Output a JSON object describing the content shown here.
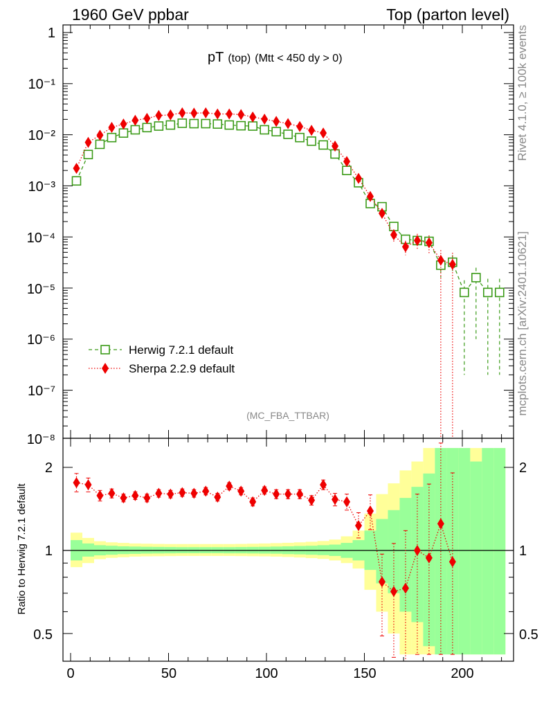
{
  "header": {
    "left": "1960 GeV ppbar",
    "right": "Top (parton level)"
  },
  "side": {
    "rivet": "Rivet 4.1.0, ≥ 100k events",
    "mcplots": "mcplots.cern.ch [arXiv:2401.10621]"
  },
  "chart_data": [
    {
      "type": "line",
      "title_main": "pT",
      "title_sub": "(top)",
      "title_cut": "(Mtt < 450 dy > 0)",
      "analysis": "(MC_FBA_TTBAR)",
      "yscale": "log",
      "xlim": [
        -5,
        225
      ],
      "ylim": [
        1e-08,
        1.5
      ],
      "ytick_labels": [
        "1",
        "10⁻¹",
        "10⁻²",
        "10⁻³",
        "10⁻⁴",
        "10⁻⁵",
        "10⁻⁶",
        "10⁻⁷",
        "10⁻⁸"
      ],
      "legend": {
        "placement": "bottom-left",
        "entries": [
          "Herwig 7.2.1 default",
          "Sherpa 2.2.9 default"
        ]
      },
      "series": [
        {
          "name": "Herwig 7.2.1 default",
          "color": "#3a9a17",
          "marker": "open-square",
          "line": "dashed",
          "x": [
            3,
            9,
            15,
            21,
            27,
            33,
            39,
            45,
            51,
            57,
            63,
            69,
            75,
            81,
            87,
            93,
            99,
            105,
            111,
            117,
            123,
            129,
            135,
            141,
            147,
            153,
            159,
            165,
            171,
            177,
            183,
            189,
            195,
            201,
            207,
            213,
            219
          ],
          "values": [
            0.00125,
            0.0041,
            0.0065,
            0.0088,
            0.0108,
            0.0125,
            0.0138,
            0.0148,
            0.0155,
            0.0168,
            0.0165,
            0.0165,
            0.0162,
            0.0155,
            0.015,
            0.0148,
            0.0125,
            0.0115,
            0.0102,
            0.0088,
            0.0075,
            0.0063,
            0.0042,
            0.002,
            0.00115,
            0.00045,
            0.00039,
            0.00016,
            9e-05,
            8.5e-05,
            8.2e-05,
            2.8e-05,
            3.2e-05,
            8.2e-06,
            1.6e-05,
            8.2e-06,
            8.2e-06
          ],
          "err_up": [
            0,
            0,
            0,
            0,
            0,
            0,
            0,
            0,
            0,
            0,
            0,
            0,
            0,
            0,
            0,
            0,
            0,
            0,
            0,
            0,
            0,
            0,
            0,
            0,
            0,
            0,
            5e-05,
            3e-05,
            2e-05,
            2e-05,
            2e-05,
            1.2e-05,
            1.2e-05,
            6e-06,
            9e-06,
            7e-06,
            7e-06
          ],
          "err_down": [
            0,
            0,
            0,
            0,
            0,
            0,
            0,
            0,
            0,
            0,
            0,
            0,
            0,
            0,
            0,
            0,
            0,
            0,
            0,
            0,
            0,
            0,
            0,
            0,
            0,
            0,
            5e-05,
            3e-05,
            2e-05,
            2e-05,
            2e-05,
            1.2e-05,
            1.2e-05,
            8e-06,
            1.5e-05,
            8e-06,
            8e-06
          ]
        },
        {
          "name": "Sherpa 2.2.9 default",
          "color": "#ee0000",
          "marker": "diamond",
          "line": "dotted",
          "x": [
            3,
            9,
            15,
            21,
            27,
            33,
            39,
            45,
            51,
            57,
            63,
            69,
            75,
            81,
            87,
            93,
            99,
            105,
            111,
            117,
            123,
            129,
            135,
            141,
            147,
            153,
            159,
            165,
            171,
            177,
            183,
            189,
            195
          ],
          "values": [
            0.0022,
            0.0071,
            0.0098,
            0.0139,
            0.0162,
            0.0192,
            0.0209,
            0.0238,
            0.0245,
            0.0268,
            0.0265,
            0.0268,
            0.0255,
            0.0255,
            0.0248,
            0.0222,
            0.0202,
            0.0182,
            0.0165,
            0.0145,
            0.0122,
            0.0108,
            0.006,
            0.003,
            0.0014,
            0.00062,
            0.00029,
            0.00011,
            6.4e-05,
            8.5e-05,
            7.7e-05,
            3.5e-05,
            2.9e-05
          ],
          "err_up": [
            0,
            0,
            0,
            0,
            0,
            0,
            0,
            0,
            0,
            0,
            0,
            0,
            0,
            0,
            0,
            0,
            0,
            0,
            0,
            0,
            0,
            0,
            0,
            0,
            0,
            0,
            5e-05,
            3e-05,
            2e-05,
            3e-05,
            3e-05,
            2e-05,
            2e-05
          ],
          "err_down": [
            0,
            0,
            0,
            0,
            0,
            0,
            0,
            0,
            0,
            0,
            0,
            0,
            0,
            0,
            0,
            0,
            0,
            0,
            0,
            0,
            0,
            0,
            0,
            0,
            0,
            0,
            5e-05,
            3e-05,
            2e-05,
            3e-05,
            3e-05,
            3.5e-05,
            2.9e-05
          ]
        }
      ]
    },
    {
      "type": "line",
      "ylabel": "Ratio to Herwig 7.2.1 default",
      "yscale": "log",
      "xlim": [
        -5,
        225
      ],
      "ylim": [
        0.42,
        2.35
      ],
      "xticks": [
        0,
        50,
        100,
        150,
        200
      ],
      "yticks": [
        0.5,
        1,
        2
      ],
      "ytick_labels": [
        "0.5",
        "1",
        "2"
      ],
      "reference_line": 1,
      "bands": {
        "bin_edges": [
          0,
          6,
          12,
          18,
          24,
          30,
          36,
          42,
          48,
          54,
          60,
          66,
          72,
          78,
          84,
          90,
          96,
          102,
          108,
          114,
          120,
          126,
          132,
          138,
          144,
          150,
          156,
          162,
          168,
          174,
          180,
          186,
          192,
          198,
          204,
          210,
          216,
          222
        ],
        "green_lo": [
          0.92,
          0.95,
          0.96,
          0.965,
          0.97,
          0.972,
          0.974,
          0.975,
          0.976,
          0.977,
          0.977,
          0.977,
          0.977,
          0.976,
          0.976,
          0.975,
          0.974,
          0.973,
          0.97,
          0.968,
          0.965,
          0.962,
          0.955,
          0.94,
          0.92,
          0.85,
          0.76,
          0.7,
          0.6,
          0.55,
          0.45,
          0.42,
          0.42,
          0.42,
          0.42,
          0.42,
          0.42
        ],
        "green_hi": [
          1.09,
          1.06,
          1.045,
          1.04,
          1.035,
          1.033,
          1.031,
          1.03,
          1.029,
          1.028,
          1.028,
          1.028,
          1.028,
          1.028,
          1.029,
          1.03,
          1.031,
          1.033,
          1.035,
          1.038,
          1.04,
          1.045,
          1.05,
          1.065,
          1.09,
          1.18,
          1.3,
          1.4,
          1.55,
          1.7,
          1.9,
          2.35,
          2.35,
          2.35,
          2.1,
          2.35,
          2.35
        ],
        "yellow_lo": [
          0.87,
          0.9,
          0.93,
          0.94,
          0.945,
          0.95,
          0.952,
          0.953,
          0.954,
          0.955,
          0.955,
          0.955,
          0.955,
          0.955,
          0.954,
          0.953,
          0.952,
          0.95,
          0.947,
          0.943,
          0.938,
          0.932,
          0.92,
          0.9,
          0.86,
          0.72,
          0.6,
          0.5,
          0.42,
          0.42,
          0.42,
          0.42,
          0.42,
          0.42,
          0.42,
          0.42,
          0.42
        ],
        "yellow_hi": [
          1.16,
          1.11,
          1.08,
          1.07,
          1.065,
          1.06,
          1.058,
          1.056,
          1.055,
          1.055,
          1.055,
          1.055,
          1.055,
          1.055,
          1.056,
          1.058,
          1.06,
          1.063,
          1.066,
          1.07,
          1.075,
          1.082,
          1.095,
          1.125,
          1.18,
          1.36,
          1.6,
          1.75,
          1.95,
          2.1,
          2.35,
          2.35,
          2.35,
          2.35,
          2.35,
          2.35,
          2.35
        ]
      },
      "ratio_series": {
        "name": "Sherpa 2.2.9 default",
        "color": "#ee0000",
        "x": [
          3,
          9,
          15,
          21,
          27,
          33,
          39,
          45,
          51,
          57,
          63,
          69,
          75,
          81,
          87,
          93,
          99,
          105,
          111,
          117,
          123,
          129,
          135,
          141,
          147,
          153,
          159,
          165,
          171,
          177,
          183,
          189,
          195
        ],
        "values": [
          1.76,
          1.73,
          1.58,
          1.61,
          1.55,
          1.58,
          1.55,
          1.61,
          1.6,
          1.62,
          1.61,
          1.64,
          1.56,
          1.71,
          1.64,
          1.5,
          1.65,
          1.6,
          1.6,
          1.6,
          1.52,
          1.73,
          1.53,
          1.5,
          1.23,
          1.39,
          0.77,
          0.71,
          0.73,
          1,
          0.94,
          1.25,
          0.91
        ],
        "err_up": [
          0.14,
          0.1,
          0.07,
          0.06,
          0.05,
          0.05,
          0.05,
          0.05,
          0.05,
          0.05,
          0.05,
          0.05,
          0.05,
          0.05,
          0.05,
          0.05,
          0.05,
          0.06,
          0.06,
          0.06,
          0.06,
          0.07,
          0.08,
          0.1,
          0.14,
          0.2,
          0.2,
          0.35,
          0.45,
          0.6,
          0.8,
          1.2,
          1
        ],
        "err_down": [
          0.13,
          0.1,
          0.07,
          0.06,
          0.05,
          0.05,
          0.05,
          0.05,
          0.05,
          0.05,
          0.05,
          0.05,
          0.05,
          0.05,
          0.05,
          0.05,
          0.05,
          0.06,
          0.06,
          0.06,
          0.06,
          0.07,
          0.08,
          0.1,
          0.12,
          0.2,
          0.28,
          0.3,
          0.35,
          0.58,
          0.52,
          0.83,
          0.49
        ]
      }
    }
  ]
}
